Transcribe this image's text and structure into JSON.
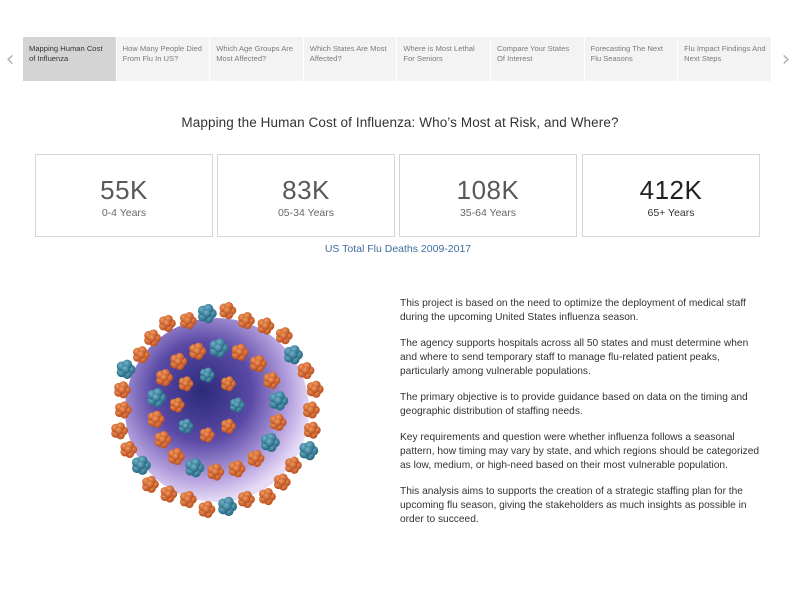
{
  "nav": {
    "prev_icon": "chevron-left-icon",
    "next_icon": "chevron-right-icon",
    "tabs": [
      {
        "label": "Mapping Human Cost of Influenza",
        "active": true
      },
      {
        "label": "How Many People Died From Flu In US?",
        "active": false
      },
      {
        "label": "Which Age Groups Are Most Affected?",
        "active": false
      },
      {
        "label": "Which States Are Most Affected?",
        "active": false
      },
      {
        "label": "Where is Most Lethal For Seniors",
        "active": false
      },
      {
        "label": "Compare Your States Of Interest",
        "active": false
      },
      {
        "label": "Forecasting The Next Flu Seasons",
        "active": false
      },
      {
        "label": "Flu Impact Findings And Next Steps",
        "active": false
      }
    ]
  },
  "page": {
    "title": "Mapping the Human Cost of Influenza: Who’s Most at Risk, and Where?",
    "subtitle": "US Total Flu Deaths 2009-2017"
  },
  "kpis": [
    {
      "value": "55K",
      "label": "0-4 Years"
    },
    {
      "value": "83K",
      "label": "05-34 Years"
    },
    {
      "value": "108K",
      "label": "35-64 Years"
    },
    {
      "value": "412K",
      "label": "65+ Years"
    }
  ],
  "illustration": {
    "icon": "influenza-virus-icon"
  },
  "body": {
    "paragraphs": [
      "This project is based on the need to optimize the deployment of medical staff during the upcoming United States influenza season.",
      "The agency supports hospitals across all 50 states and must determine when and where to send temporary staff to manage flu-related patient peaks, particularly among vulnerable populations.",
      "The primary objective is to provide guidance based on data on the timing and geographic distribution of staffing needs.",
      "Key requirements and question were whether influenza follows a seasonal pattern, how timing may vary by state, and which regions should be categorized as low, medium, or high-need based on their most vulnerable population.",
      "This analysis aims to supports the creation of a strategic staffing plan for the upcoming flu season, giving the stakeholders as much insights as possible in order to succeed."
    ]
  },
  "colors": {
    "tab_bg": "#f3f3f3",
    "tab_active_bg": "#d4d4d4",
    "accent_link": "#3f6e9c",
    "virus_spike": "#d9632a",
    "virus_protein": "#3a8aa6",
    "virus_core": "#6a4fa8"
  }
}
